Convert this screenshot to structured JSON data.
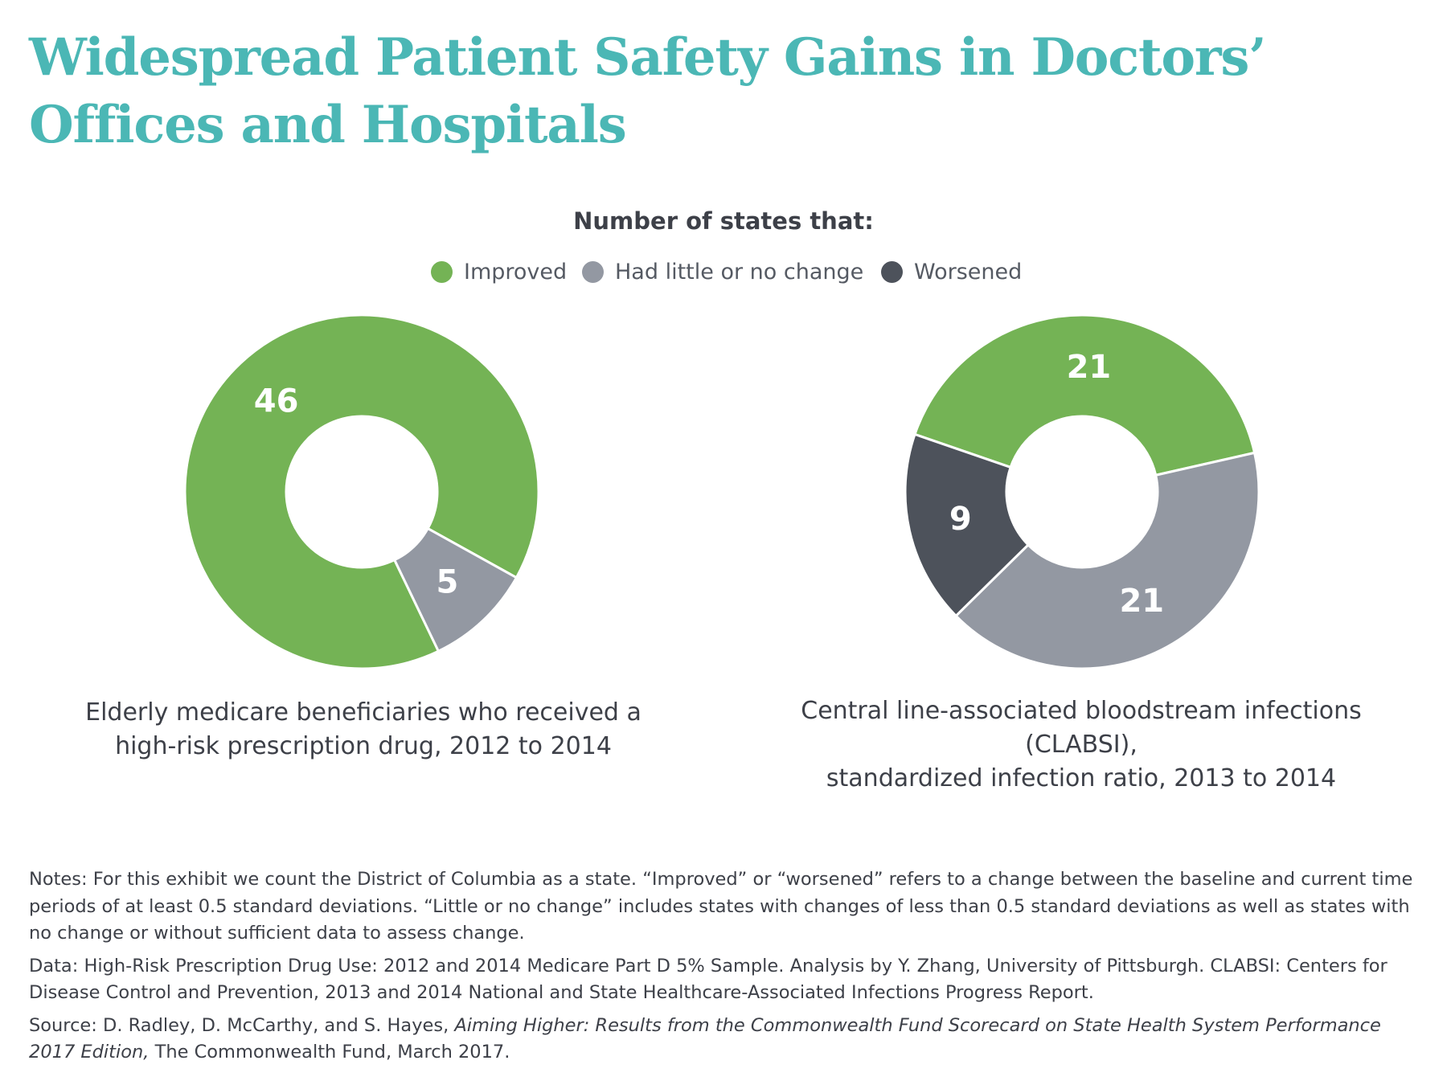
{
  "title": "Widespread Patient Safety Gains in Doctors’ Offices and Hospitals",
  "legend": {
    "title": "Number of states that:",
    "items": [
      {
        "label": "Improved",
        "color": "#74b355"
      },
      {
        "label": "Had little or no change",
        "color": "#9398a2"
      },
      {
        "label": "Worsened",
        "color": "#4d525b"
      }
    ]
  },
  "chart_data": [
    {
      "type": "pie",
      "subtype": "donut",
      "caption_line1": "Elderly medicare beneficiaries who received a",
      "caption_line2": "high-risk prescription drug, 2012 to 2014",
      "slices": [
        {
          "label": "Improved",
          "value": 46,
          "display": "46",
          "color": "#74b355"
        },
        {
          "label": "Had little or no change",
          "value": 5,
          "display": "5",
          "color": "#9398a2"
        }
      ]
    },
    {
      "type": "pie",
      "subtype": "donut",
      "caption_line1": "Central line-associated bloodstream infections (CLABSI),",
      "caption_line2": "standardized infection ratio, 2013 to 2014",
      "slices": [
        {
          "label": "Improved",
          "value": 21,
          "display": "21",
          "color": "#74b355"
        },
        {
          "label": "Had little or no change",
          "value": 21,
          "display": "21",
          "color": "#9398a2"
        },
        {
          "label": "Worsened",
          "value": 9,
          "display": "9",
          "color": "#4d525b"
        }
      ]
    }
  ],
  "notes": {
    "notes_text": "Notes: For this exhibit we count the District of Columbia as a state. “Improved” or “worsened” refers to a change between the baseline and current time periods of at least 0.5 standard deviations. “Little or no change” includes states with changes of less than 0.5 standard deviations as well as states with no change or without sufficient data to assess change.",
    "data_text": "Data: High-Risk Prescription Drug Use: 2012 and 2014 Medicare Part D 5% Sample. Analysis by Y. Zhang, University of Pittsburgh. CLABSI: Centers for Disease Control and Prevention, 2013 and 2014 National and State Healthcare-Associated Infections Progress Report.",
    "source_prefix": "Source: D. Radley, D. McCarthy, and S. Hayes, ",
    "source_italic": "Aiming Higher: Results from the Commonwealth Fund Scorecard on State Health System Performance 2017 Edition,",
    "source_suffix": " The Commonwealth Fund, March 2017."
  }
}
